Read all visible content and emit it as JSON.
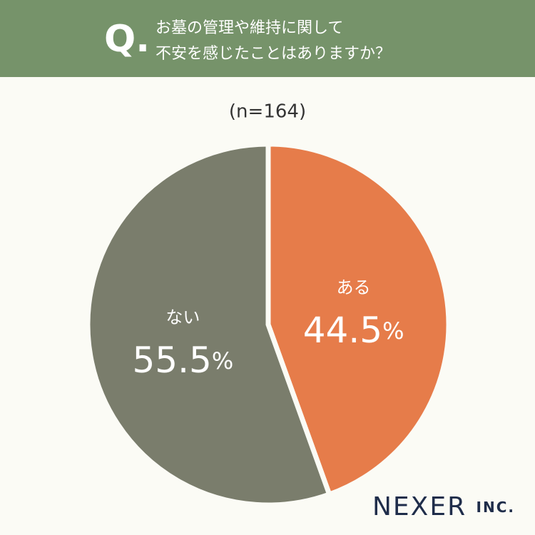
{
  "chart_data": {
    "type": "pie",
    "question_marker": "Q.",
    "title_lines": [
      "お墓の管理や維持に関して",
      "不安を感じたことはありますか？"
    ],
    "subtitle": "(n=164)",
    "categories": [
      "ある",
      "ない"
    ],
    "values": [
      44.5,
      55.5
    ],
    "value_labels": [
      "44.5%",
      "55.5%"
    ],
    "colors": [
      "#e67c4a",
      "#7a7d6c"
    ],
    "brand": "NEXER INC."
  }
}
